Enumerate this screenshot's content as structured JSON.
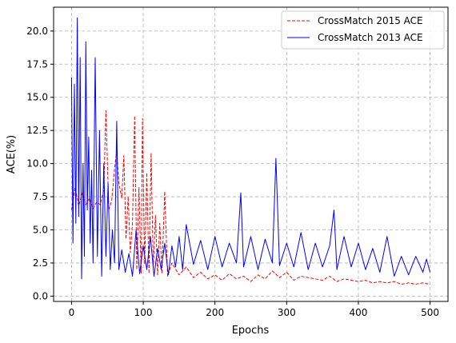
{
  "chart_data": {
    "type": "line",
    "title": "",
    "xlabel": "Epochs",
    "ylabel": "ACE(%)",
    "xlim": [
      -25,
      525
    ],
    "ylim": [
      -0.4,
      21.8
    ],
    "xticks": [
      0,
      100,
      200,
      300,
      400,
      500
    ],
    "yticks": [
      0.0,
      2.5,
      5.0,
      7.5,
      10.0,
      12.5,
      15.0,
      17.5,
      20.0
    ],
    "xtick_labels": [
      "0",
      "100",
      "200",
      "300",
      "400",
      "500"
    ],
    "ytick_labels": [
      "0.0",
      "2.5",
      "5.0",
      "7.5",
      "10.0",
      "12.5",
      "15.0",
      "17.5",
      "20.0"
    ],
    "grid": true,
    "legend_position": "top-right",
    "series": [
      {
        "name": "CrossMatch 2015 ACE",
        "color": "#ff0000",
        "style": "dashed",
        "points": [
          [
            0,
            6.5
          ],
          [
            5,
            8.2
          ],
          [
            10,
            6.8
          ],
          [
            15,
            7.8
          ],
          [
            20,
            6.9
          ],
          [
            25,
            7.4
          ],
          [
            30,
            6.6
          ],
          [
            35,
            7.1
          ],
          [
            40,
            6.9
          ],
          [
            45,
            8.0
          ],
          [
            48,
            14.0
          ],
          [
            52,
            6.5
          ],
          [
            56,
            7.2
          ],
          [
            60,
            9.6
          ],
          [
            63,
            11.0
          ],
          [
            66,
            8.5
          ],
          [
            70,
            7.4
          ],
          [
            73,
            10.6
          ],
          [
            76,
            4.3
          ],
          [
            79,
            7.5
          ],
          [
            82,
            3.3
          ],
          [
            85,
            5.5
          ],
          [
            88,
            13.6
          ],
          [
            91,
            2.0
          ],
          [
            94,
            8.2
          ],
          [
            97,
            1.7
          ],
          [
            99,
            13.4
          ],
          [
            102,
            2.4
          ],
          [
            105,
            9.3
          ],
          [
            108,
            1.7
          ],
          [
            111,
            10.8
          ],
          [
            114,
            2.1
          ],
          [
            117,
            6.1
          ],
          [
            120,
            1.6
          ],
          [
            123,
            5.5
          ],
          [
            126,
            1.7
          ],
          [
            130,
            7.9
          ],
          [
            134,
            1.5
          ],
          [
            140,
            2.5
          ],
          [
            150,
            1.6
          ],
          [
            160,
            2.2
          ],
          [
            170,
            1.4
          ],
          [
            180,
            1.8
          ],
          [
            190,
            1.3
          ],
          [
            200,
            1.6
          ],
          [
            210,
            1.2
          ],
          [
            220,
            1.7
          ],
          [
            230,
            1.3
          ],
          [
            240,
            1.5
          ],
          [
            250,
            1.1
          ],
          [
            260,
            1.6
          ],
          [
            270,
            1.3
          ],
          [
            280,
            1.9
          ],
          [
            290,
            1.4
          ],
          [
            300,
            1.8
          ],
          [
            310,
            1.2
          ],
          [
            320,
            1.5
          ],
          [
            330,
            1.4
          ],
          [
            340,
            1.3
          ],
          [
            350,
            1.2
          ],
          [
            360,
            1.5
          ],
          [
            370,
            1.1
          ],
          [
            380,
            1.3
          ],
          [
            390,
            1.2
          ],
          [
            400,
            1.1
          ],
          [
            410,
            1.2
          ],
          [
            420,
            1.0
          ],
          [
            430,
            1.1
          ],
          [
            440,
            1.0
          ],
          [
            450,
            1.1
          ],
          [
            460,
            0.9
          ],
          [
            470,
            1.0
          ],
          [
            480,
            0.9
          ],
          [
            490,
            1.0
          ],
          [
            500,
            0.9
          ]
        ]
      },
      {
        "name": "CrossMatch 2013 ACE",
        "color": "#0000ff",
        "style": "solid",
        "points": [
          [
            0,
            16.5
          ],
          [
            2,
            4.0
          ],
          [
            4,
            16.0
          ],
          [
            6,
            5.5
          ],
          [
            8,
            21.0
          ],
          [
            10,
            6.0
          ],
          [
            12,
            18.0
          ],
          [
            14,
            1.3
          ],
          [
            16,
            10.0
          ],
          [
            18,
            3.0
          ],
          [
            20,
            19.2
          ],
          [
            22,
            6.5
          ],
          [
            24,
            12.0
          ],
          [
            26,
            4.0
          ],
          [
            28,
            9.5
          ],
          [
            30,
            2.5
          ],
          [
            33,
            18.0
          ],
          [
            36,
            3.0
          ],
          [
            39,
            12.5
          ],
          [
            42,
            1.5
          ],
          [
            45,
            10.0
          ],
          [
            48,
            3.0
          ],
          [
            51,
            8.5
          ],
          [
            54,
            2.0
          ],
          [
            57,
            5.0
          ],
          [
            60,
            2.5
          ],
          [
            63,
            13.2
          ],
          [
            66,
            2.0
          ],
          [
            70,
            3.5
          ],
          [
            75,
            1.8
          ],
          [
            80,
            3.2
          ],
          [
            85,
            1.5
          ],
          [
            90,
            5.0
          ],
          [
            95,
            1.7
          ],
          [
            100,
            3.8
          ],
          [
            105,
            2.0
          ],
          [
            110,
            4.5
          ],
          [
            115,
            1.5
          ],
          [
            120,
            3.6
          ],
          [
            125,
            2.0
          ],
          [
            130,
            4.0
          ],
          [
            135,
            1.6
          ],
          [
            140,
            3.8
          ],
          [
            145,
            2.2
          ],
          [
            150,
            4.5
          ],
          [
            155,
            2.0
          ],
          [
            160,
            5.4
          ],
          [
            170,
            2.4
          ],
          [
            180,
            4.2
          ],
          [
            190,
            2.0
          ],
          [
            200,
            4.5
          ],
          [
            210,
            2.2
          ],
          [
            220,
            4.0
          ],
          [
            230,
            2.5
          ],
          [
            236,
            7.8
          ],
          [
            240,
            2.2
          ],
          [
            250,
            4.5
          ],
          [
            260,
            2.0
          ],
          [
            270,
            4.3
          ],
          [
            280,
            2.5
          ],
          [
            285,
            10.4
          ],
          [
            290,
            2.3
          ],
          [
            300,
            4.0
          ],
          [
            310,
            2.2
          ],
          [
            320,
            4.8
          ],
          [
            330,
            2.0
          ],
          [
            340,
            4.0
          ],
          [
            350,
            2.2
          ],
          [
            360,
            3.8
          ],
          [
            366,
            6.5
          ],
          [
            370,
            2.0
          ],
          [
            380,
            4.5
          ],
          [
            390,
            2.2
          ],
          [
            400,
            4.0
          ],
          [
            410,
            2.0
          ],
          [
            420,
            3.6
          ],
          [
            430,
            1.8
          ],
          [
            440,
            4.5
          ],
          [
            450,
            1.5
          ],
          [
            460,
            3.0
          ],
          [
            470,
            1.6
          ],
          [
            480,
            3.0
          ],
          [
            490,
            1.8
          ],
          [
            495,
            2.8
          ],
          [
            500,
            1.8
          ]
        ]
      }
    ]
  }
}
